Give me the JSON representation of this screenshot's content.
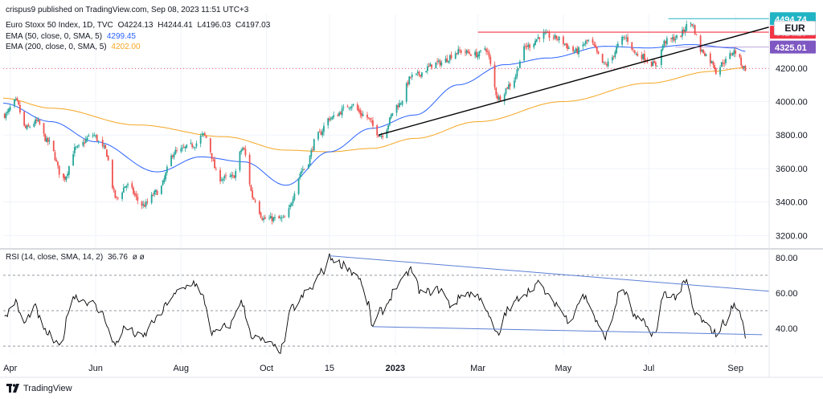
{
  "header": {
    "published": "crispus9 published on TradingView.com, Sep 08, 2023 11:51 UTC+3",
    "symbol": "Euro Stoxx 50 Index, 1D, TVC",
    "open": "O4224.13",
    "high": "H4244.41",
    "low": "L4196.03",
    "close": "C4197.03",
    "ema50_label": "EMA (50, close, 0, SMA, 5)",
    "ema50_value": "4299.45",
    "ema200_label": "EMA (200, close, 0, SMA, 5)",
    "ema200_value": "4202.00",
    "rsi_label": "RSI (14, close, SMA, 14, 2)",
    "rsi_value": "36.76",
    "rsi_extra": "ø  ø"
  },
  "currency": "EUR",
  "brand": "TradingView",
  "colors": {
    "up": "#26a69a",
    "down": "#ef5350",
    "ema50": "#2962ff",
    "ema200": "#f5a623",
    "resistance": "#f23645",
    "trend": "#000000",
    "rsi": "#000000",
    "divergence": "#5b7fd6",
    "tag_cyan": "#22b4c4",
    "tag_red": "#f23645",
    "tag_purple": "#7e57c2"
  },
  "chart_data": [
    {
      "type": "candlestick",
      "title": "Euro Stoxx 50 Index, 1D, TVC",
      "y_ticks": [
        3200,
        3400,
        3600,
        3800,
        4000,
        4200
      ],
      "y_tick_labels": [
        "3200.00",
        "3400.00",
        "3600.00",
        "3800.00",
        "4000.00",
        "4200.00"
      ],
      "ylim": [
        3130,
        4520
      ],
      "x_tick_labels": [
        "Apr",
        "Jun",
        "Aug",
        "Oct",
        "15",
        "2023",
        "Mar",
        "May",
        "Jul",
        "Sep"
      ],
      "x_ticks": [
        "2022-04-01",
        "2022-06-01",
        "2022-08-01",
        "2022-10-01",
        "2022-11-15",
        "2023-01-01",
        "2023-03-01",
        "2023-05-01",
        "2023-07-01",
        "2023-09-01"
      ],
      "x_range": [
        "2022-03-27",
        "2023-09-25"
      ],
      "close_anchors": [
        [
          "2022-03-28",
          3920
        ],
        [
          "2022-04-05",
          4000
        ],
        [
          "2022-04-12",
          3840
        ],
        [
          "2022-04-20",
          3880
        ],
        [
          "2022-04-28",
          3760
        ],
        [
          "2022-05-09",
          3540
        ],
        [
          "2022-05-18",
          3720
        ],
        [
          "2022-05-30",
          3800
        ],
        [
          "2022-06-07",
          3720
        ],
        [
          "2022-06-16",
          3420
        ],
        [
          "2022-06-23",
          3500
        ],
        [
          "2022-07-05",
          3380
        ],
        [
          "2022-07-15",
          3460
        ],
        [
          "2022-07-28",
          3700
        ],
        [
          "2022-08-10",
          3740
        ],
        [
          "2022-08-17",
          3800
        ],
        [
          "2022-08-29",
          3540
        ],
        [
          "2022-09-07",
          3550
        ],
        [
          "2022-09-14",
          3720
        ],
        [
          "2022-09-22",
          3420
        ],
        [
          "2022-09-29",
          3300
        ],
        [
          "2022-10-13",
          3300
        ],
        [
          "2022-10-28",
          3600
        ],
        [
          "2022-11-07",
          3800
        ],
        [
          "2022-11-15",
          3900
        ],
        [
          "2022-12-01",
          3980
        ],
        [
          "2022-12-09",
          3920
        ],
        [
          "2022-12-22",
          3800
        ],
        [
          "2023-01-03",
          3980
        ],
        [
          "2023-01-13",
          4150
        ],
        [
          "2023-02-01",
          4230
        ],
        [
          "2023-02-16",
          4300
        ],
        [
          "2023-03-01",
          4280
        ],
        [
          "2023-03-06",
          4320
        ],
        [
          "2023-03-16",
          4020
        ],
        [
          "2023-03-24",
          4100
        ],
        [
          "2023-04-05",
          4330
        ],
        [
          "2023-04-17",
          4400
        ],
        [
          "2023-04-25",
          4380
        ],
        [
          "2023-05-10",
          4300
        ],
        [
          "2023-05-19",
          4360
        ],
        [
          "2023-05-31",
          4220
        ],
        [
          "2023-06-14",
          4380
        ],
        [
          "2023-06-23",
          4280
        ],
        [
          "2023-07-06",
          4220
        ],
        [
          "2023-07-13",
          4360
        ],
        [
          "2023-07-21",
          4380
        ],
        [
          "2023-07-31",
          4470
        ],
        [
          "2023-08-08",
          4300
        ],
        [
          "2023-08-16",
          4230
        ],
        [
          "2023-08-18",
          4180
        ],
        [
          "2023-08-24",
          4240
        ],
        [
          "2023-08-31",
          4300
        ],
        [
          "2023-09-08",
          4197
        ]
      ],
      "ema50_anchors": [
        [
          "2022-03-27",
          3990
        ],
        [
          "2022-04-30",
          3880
        ],
        [
          "2022-06-01",
          3760
        ],
        [
          "2022-07-15",
          3580
        ],
        [
          "2022-08-15",
          3670
        ],
        [
          "2022-09-15",
          3640
        ],
        [
          "2022-10-15",
          3500
        ],
        [
          "2022-11-15",
          3700
        ],
        [
          "2022-12-15",
          3840
        ],
        [
          "2023-01-15",
          3920
        ],
        [
          "2023-02-15",
          4100
        ],
        [
          "2023-03-20",
          4220
        ],
        [
          "2023-04-20",
          4260
        ],
        [
          "2023-05-31",
          4330
        ],
        [
          "2023-06-30",
          4320
        ],
        [
          "2023-07-31",
          4340
        ],
        [
          "2023-08-31",
          4320
        ],
        [
          "2023-09-08",
          4299.45
        ]
      ],
      "ema200_anchors": [
        [
          "2022-03-27",
          4020
        ],
        [
          "2022-05-01",
          3960
        ],
        [
          "2022-07-01",
          3860
        ],
        [
          "2022-09-01",
          3790
        ],
        [
          "2022-10-15",
          3710
        ],
        [
          "2022-11-15",
          3700
        ],
        [
          "2022-12-15",
          3720
        ],
        [
          "2023-01-15",
          3780
        ],
        [
          "2023-03-01",
          3880
        ],
        [
          "2023-05-01",
          4000
        ],
        [
          "2023-07-01",
          4110
        ],
        [
          "2023-08-15",
          4180
        ],
        [
          "2023-09-08",
          4202.0
        ]
      ],
      "drawings": {
        "resistance": {
          "date": [
            "2023-03-01",
            "2023-09-25"
          ],
          "value": 4414.25
        },
        "peak_line": {
          "date": [
            "2023-07-15",
            "2023-09-25"
          ],
          "value": 4494.74
        },
        "trendline": {
          "date": [
            "2022-12-20",
            "2023-09-25"
          ],
          "value": [
            3800,
            4445
          ]
        }
      },
      "price_tags": [
        {
          "label": "4494.74",
          "value": 4494.74,
          "color": "#22b4c4"
        },
        {
          "label": "4414.25",
          "value": 4414.25,
          "color": "#f23645"
        },
        {
          "label": "4325.01",
          "value": 4325.01,
          "color": "#7e57c2"
        }
      ]
    },
    {
      "type": "line",
      "title": "RSI (14, close, SMA, 14, 2)",
      "y_ticks": [
        40,
        60,
        80
      ],
      "y_tick_labels": [
        "40.00",
        "60.00",
        "80.00"
      ],
      "ylim": [
        26,
        84
      ],
      "bands": [
        30,
        50,
        70
      ],
      "rsi_anchors": [
        [
          "2022-03-27",
          45
        ],
        [
          "2022-04-04",
          55
        ],
        [
          "2022-04-11",
          43
        ],
        [
          "2022-04-18",
          52
        ],
        [
          "2022-04-26",
          38
        ],
        [
          "2022-05-06",
          30
        ],
        [
          "2022-05-16",
          58
        ],
        [
          "2022-05-28",
          55
        ],
        [
          "2022-06-06",
          48
        ],
        [
          "2022-06-14",
          31
        ],
        [
          "2022-06-22",
          40
        ],
        [
          "2022-07-04",
          35
        ],
        [
          "2022-07-14",
          45
        ],
        [
          "2022-07-26",
          58
        ],
        [
          "2022-08-01",
          62
        ],
        [
          "2022-08-10",
          66
        ],
        [
          "2022-08-16",
          58
        ],
        [
          "2022-08-24",
          37
        ],
        [
          "2022-09-05",
          42
        ],
        [
          "2022-09-12",
          55
        ],
        [
          "2022-09-22",
          35
        ],
        [
          "2022-09-28",
          33
        ],
        [
          "2022-10-11",
          28
        ],
        [
          "2022-10-20",
          52
        ],
        [
          "2022-11-01",
          62
        ],
        [
          "2022-11-10",
          72
        ],
        [
          "2022-11-15",
          80
        ],
        [
          "2022-11-25",
          76
        ],
        [
          "2022-12-05",
          70
        ],
        [
          "2022-12-12",
          55
        ],
        [
          "2022-12-16",
          41
        ],
        [
          "2022-12-22",
          50
        ],
        [
          "2023-01-04",
          65
        ],
        [
          "2023-01-12",
          73
        ],
        [
          "2023-01-20",
          60
        ],
        [
          "2023-02-02",
          62
        ],
        [
          "2023-02-10",
          53
        ],
        [
          "2023-02-20",
          60
        ],
        [
          "2023-03-03",
          58
        ],
        [
          "2023-03-10",
          45
        ],
        [
          "2023-03-15",
          36
        ],
        [
          "2023-03-22",
          50
        ],
        [
          "2023-04-03",
          60
        ],
        [
          "2023-04-13",
          65
        ],
        [
          "2023-04-24",
          55
        ],
        [
          "2023-05-05",
          45
        ],
        [
          "2023-05-15",
          58
        ],
        [
          "2023-05-31",
          36
        ],
        [
          "2023-06-12",
          62
        ],
        [
          "2023-06-23",
          45
        ],
        [
          "2023-07-06",
          37
        ],
        [
          "2023-07-12",
          60
        ],
        [
          "2023-07-20",
          58
        ],
        [
          "2023-07-28",
          66
        ],
        [
          "2023-08-03",
          48
        ],
        [
          "2023-08-14",
          40
        ],
        [
          "2023-08-18",
          37
        ],
        [
          "2023-08-25",
          44
        ],
        [
          "2023-08-31",
          53
        ],
        [
          "2023-09-04",
          49
        ],
        [
          "2023-09-08",
          36.76
        ]
      ],
      "drawings": {
        "upper_divergence": {
          "date": [
            "2022-11-15",
            "2023-09-25"
          ],
          "value": [
            81,
            61
          ]
        },
        "lower_divergence": {
          "date": [
            "2022-12-16",
            "2023-09-20"
          ],
          "value": [
            41,
            36.5
          ]
        }
      }
    }
  ]
}
